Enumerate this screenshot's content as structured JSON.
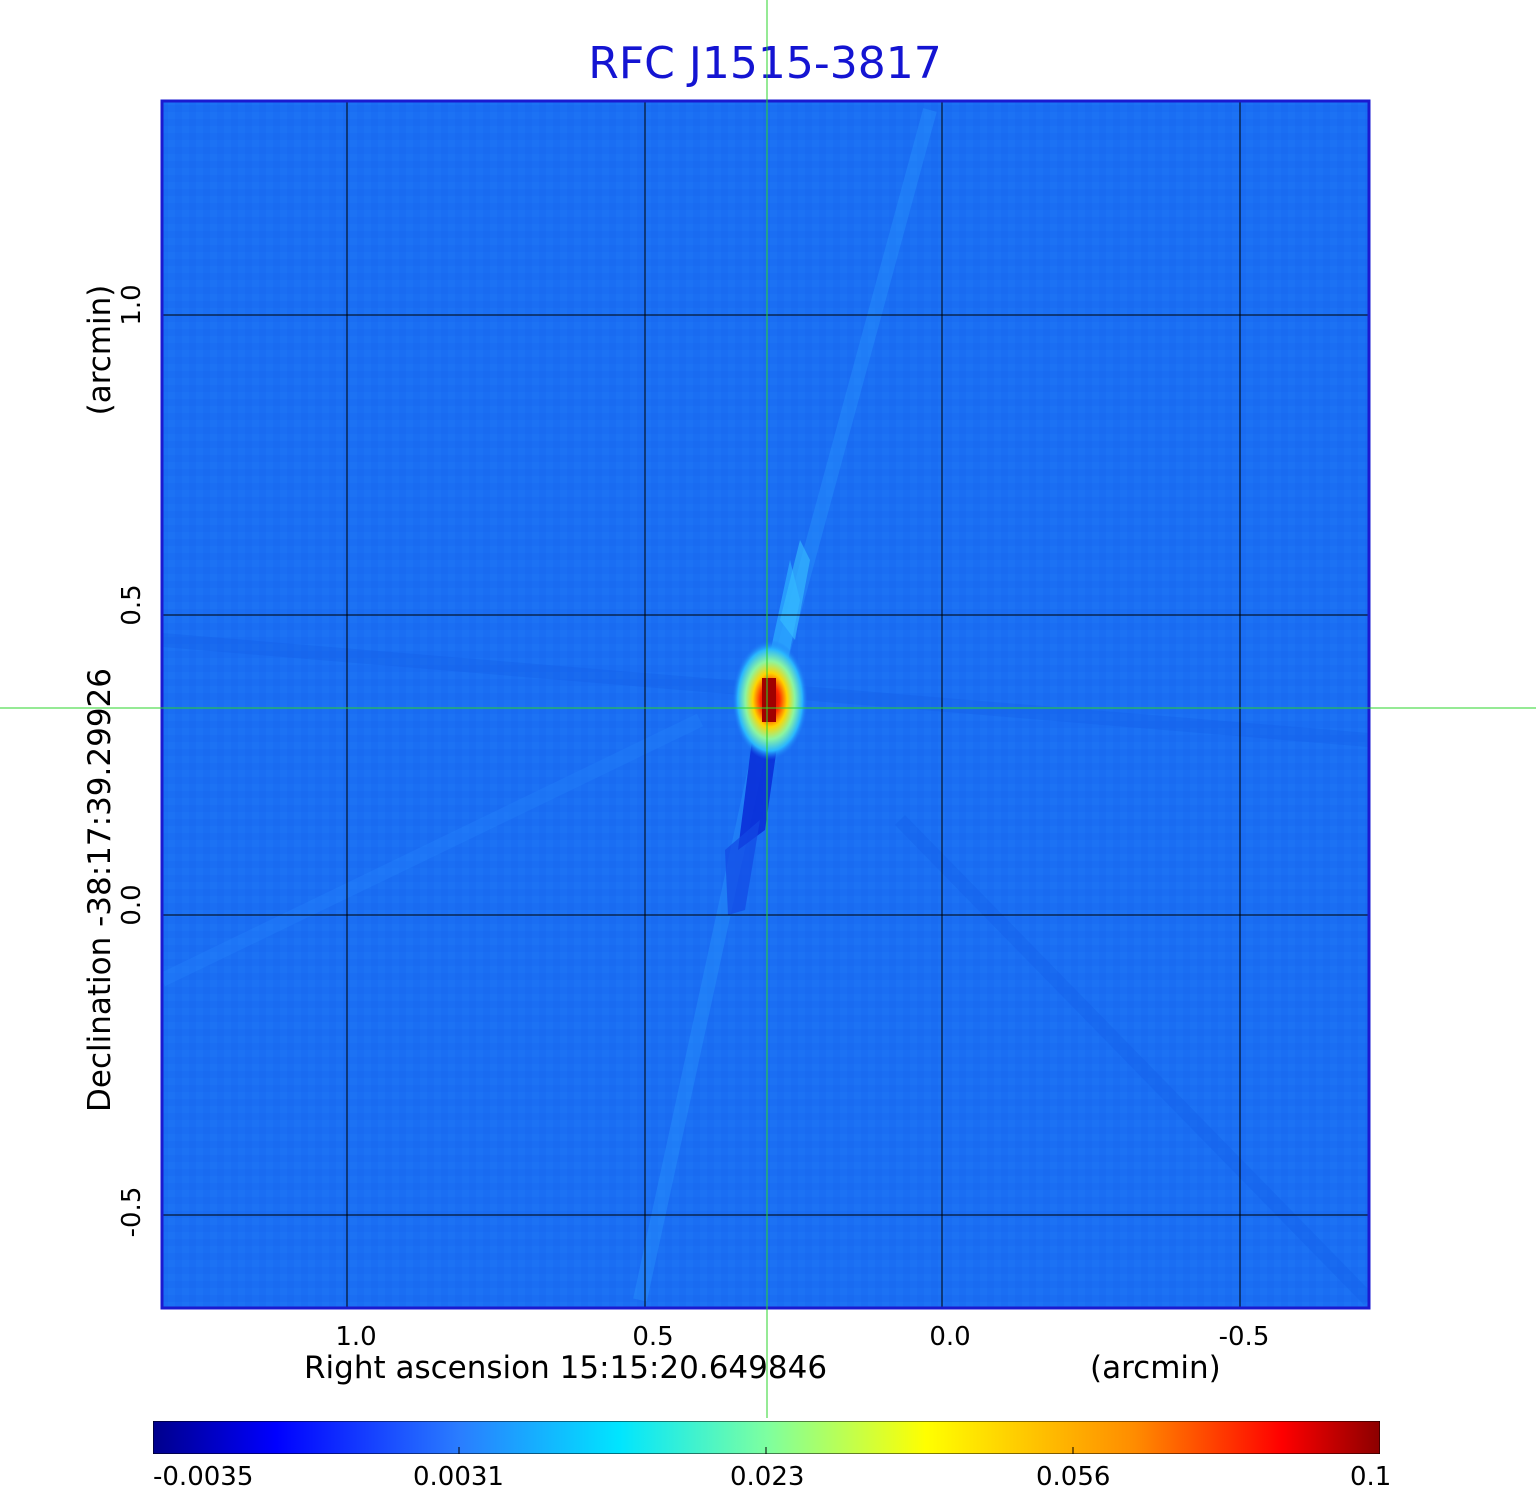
{
  "title": "RFC J1515-3817",
  "x_axis": {
    "label": "Right ascension  15:15:20.649846",
    "unit": "(arcmin)",
    "ticks": [
      "1.0",
      "0.5",
      "0.0",
      "-0.5"
    ]
  },
  "y_axis": {
    "label": "Declination  -38:17:39.29926",
    "unit": "(arcmin)",
    "ticks": [
      "1.0",
      "0.5",
      "0.0",
      "-0.5"
    ]
  },
  "colorbar": {
    "ticks": [
      "-0.0035",
      "0.0031",
      "0.023",
      "0.056",
      "0.1"
    ]
  },
  "colors": {
    "title": "#1414d2",
    "frame": "#1a1ad0",
    "crosshair": "#2bd62b",
    "background_map": "#1a6cf2"
  },
  "image_description": {
    "colormap": "jet",
    "source_peak_position_arcmin": [
      0.29,
      0.35
    ],
    "crosshair_arcmin": [
      0.29,
      0.345
    ]
  }
}
